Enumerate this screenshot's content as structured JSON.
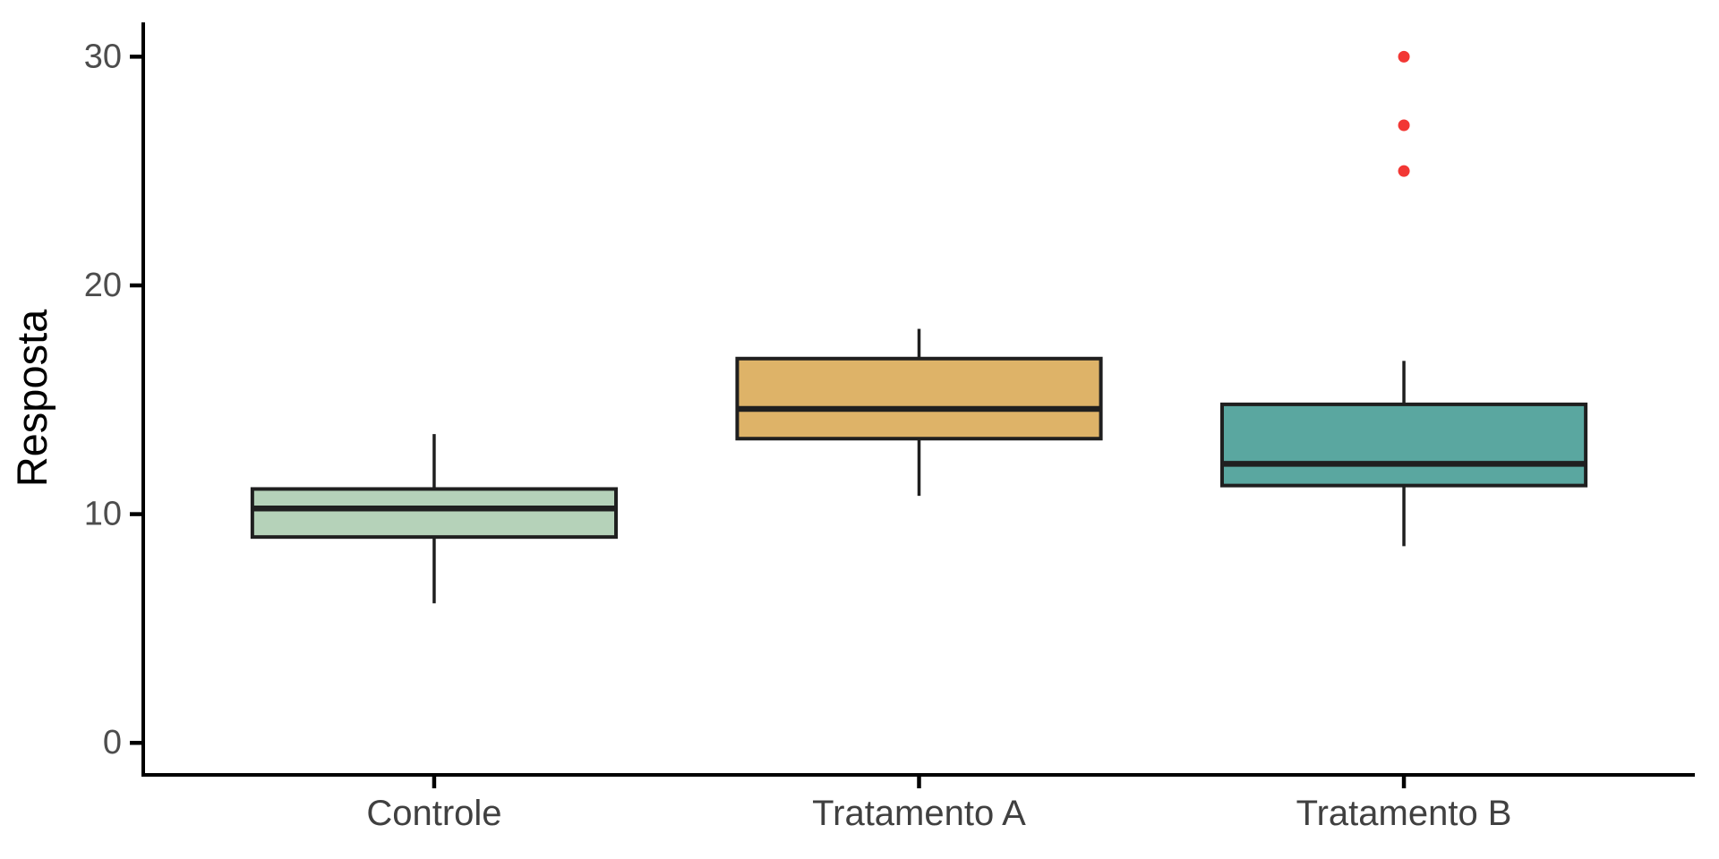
{
  "background": "#ffffff",
  "chart_data": {
    "type": "boxplot",
    "ylabel": "Resposta",
    "categories": [
      "Controle",
      "Tratamento A",
      "Tratamento B"
    ],
    "y_ticks": [
      0,
      10,
      20,
      30
    ],
    "ylim": [
      -1.4,
      31.5
    ],
    "grid": "off",
    "legend": "none",
    "boxes": [
      {
        "category": "Controle",
        "whisker_low": 6.1,
        "q1": 9.0,
        "median": 10.25,
        "q3": 11.1,
        "whisker_high": 13.5,
        "outliers": [],
        "fill": "#b5d2b9"
      },
      {
        "category": "Tratamento A",
        "whisker_low": 10.8,
        "q1": 13.3,
        "median": 14.6,
        "q3": 16.8,
        "whisker_high": 18.1,
        "outliers": [],
        "fill": "#deb368"
      },
      {
        "category": "Tratamento B",
        "whisker_low": 8.6,
        "q1": 11.25,
        "median": 12.2,
        "q3": 14.8,
        "whisker_high": 16.7,
        "outliers": [
          25,
          27,
          30
        ],
        "fill": "#5aa7a0"
      }
    ],
    "colors": {
      "outlier": "#f23734",
      "box_border": "#1f1f1f",
      "median_line": "#1f1f1f",
      "whisker": "#1f1f1f",
      "axis_line": "#000000",
      "tick_label": "#4d4d4d",
      "category_label": "#404040",
      "axis_title": "#000000"
    }
  }
}
